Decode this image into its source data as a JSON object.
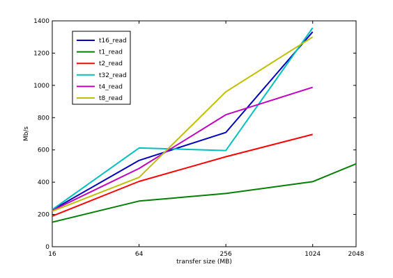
{
  "chart_data": {
    "type": "line",
    "title": "",
    "xlabel": "transfer size (MB)",
    "ylabel": "Mb/s",
    "x_scale": "log2",
    "x": [
      16,
      64,
      256,
      1024,
      2048
    ],
    "xticks": [
      "16",
      "64",
      "256",
      "1024",
      "2048"
    ],
    "xlim": [
      16,
      2048
    ],
    "ylim": [
      0,
      1400
    ],
    "yticks": [
      "0",
      "200",
      "400",
      "600",
      "800",
      "1000",
      "1200",
      "1400"
    ],
    "grid": false,
    "legend_position": "top-left",
    "series": [
      {
        "name": "t16_read",
        "color": "#0000bf",
        "points": [
          [
            16,
            228
          ],
          [
            64,
            535
          ],
          [
            256,
            708
          ],
          [
            1024,
            1332
          ]
        ]
      },
      {
        "name": "t1_read",
        "color": "#007f00",
        "points": [
          [
            16,
            152
          ],
          [
            64,
            283
          ],
          [
            256,
            330
          ],
          [
            1024,
            403
          ],
          [
            2048,
            514
          ]
        ]
      },
      {
        "name": "t2_read",
        "color": "#ff0000",
        "points": [
          [
            16,
            190
          ],
          [
            64,
            405
          ],
          [
            256,
            558
          ],
          [
            1024,
            696
          ]
        ]
      },
      {
        "name": "t32_read",
        "color": "#00bfbf",
        "points": [
          [
            16,
            230
          ],
          [
            64,
            612
          ],
          [
            256,
            596
          ],
          [
            1024,
            1357
          ]
        ]
      },
      {
        "name": "t4_read",
        "color": "#bf00bf",
        "points": [
          [
            16,
            225
          ],
          [
            64,
            485
          ],
          [
            256,
            818
          ],
          [
            1024,
            988
          ]
        ]
      },
      {
        "name": "t8_read",
        "color": "#bfbf00",
        "points": [
          [
            16,
            220
          ],
          [
            64,
            430
          ],
          [
            256,
            960
          ],
          [
            1024,
            1300
          ]
        ]
      }
    ]
  }
}
